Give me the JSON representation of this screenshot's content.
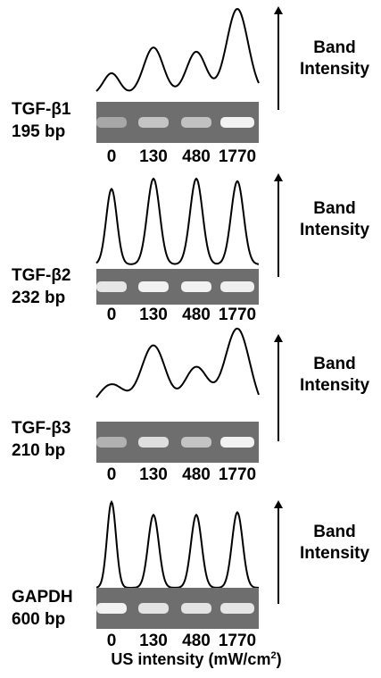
{
  "figure": {
    "panels": [
      {
        "gene": "TGF-β1",
        "size": "195 bp",
        "band_caption": [
          "Band",
          "Intensity"
        ],
        "lanes": [
          "0",
          "130",
          "480",
          "1770"
        ],
        "relative_intensity": [
          0.25,
          0.55,
          0.5,
          1.0
        ]
      },
      {
        "gene": "TGF-β2",
        "size": "232 bp",
        "band_caption": [
          "Band",
          "Intensity"
        ],
        "lanes": [
          "0",
          "130",
          "480",
          "1770"
        ],
        "relative_intensity": [
          0.88,
          1.0,
          1.0,
          0.97
        ]
      },
      {
        "gene": "TGF-β3",
        "size": "210 bp",
        "band_caption": [
          "Band",
          "Intensity"
        ],
        "lanes": [
          "0",
          "130",
          "480",
          "1770"
        ],
        "relative_intensity": [
          0.35,
          0.8,
          0.55,
          1.0
        ]
      },
      {
        "gene": "GAPDH",
        "size": "600 bp",
        "band_caption": [
          "Band",
          "Intensity"
        ],
        "lanes": [
          "0",
          "130",
          "480",
          "1770"
        ],
        "relative_intensity": [
          1.0,
          0.85,
          0.85,
          0.88
        ]
      }
    ],
    "x_axis_title": "US intensity (mW/cm",
    "x_axis_title_superscript": "2",
    "x_axis_title_suffix": ")"
  },
  "colors": {
    "gel_background": "#6e6e6e",
    "band": "#f2f2f2",
    "profile_line": "#000000"
  }
}
